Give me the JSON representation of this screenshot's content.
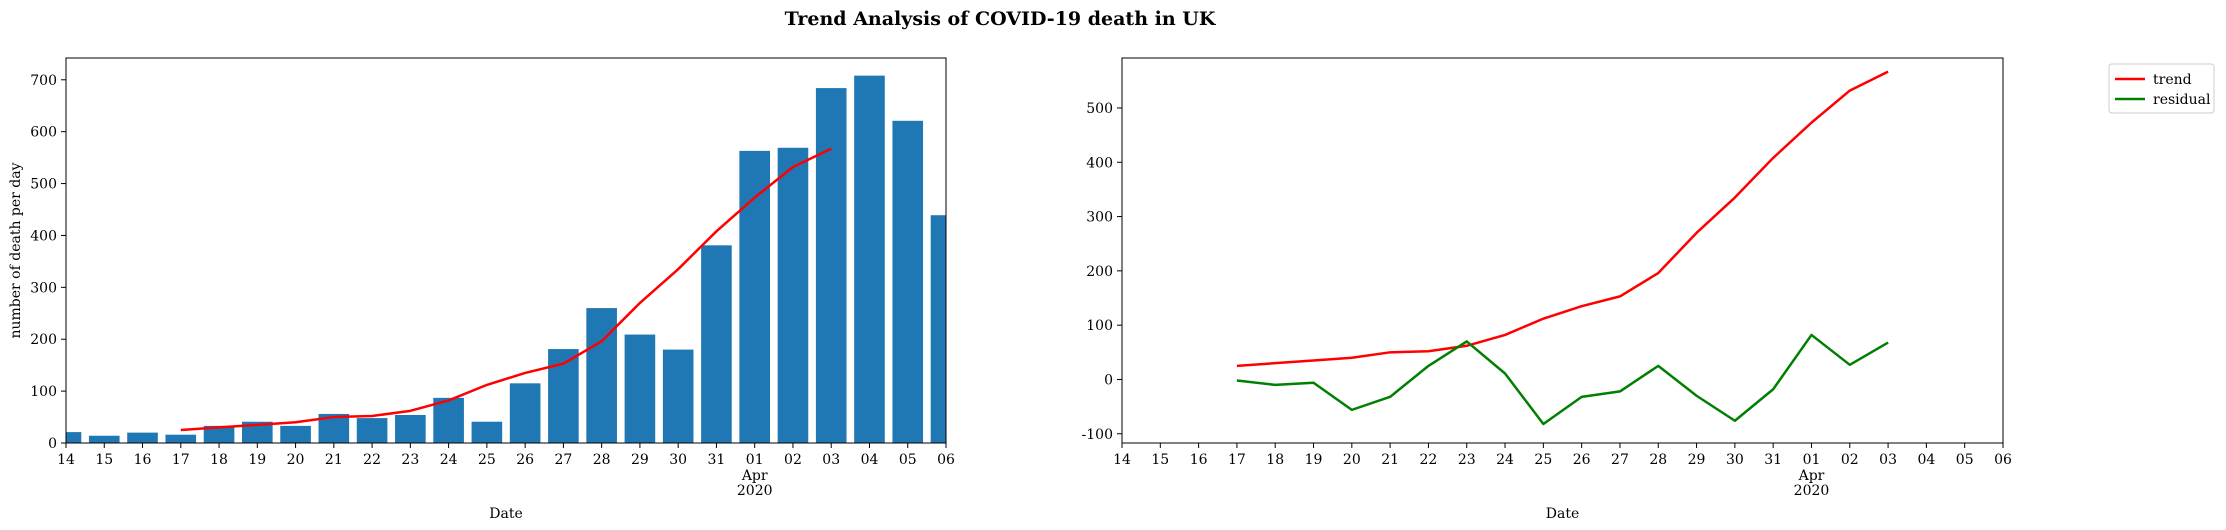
{
  "figure": {
    "suptitle": "Trend Analysis of COVID-19 death in UK"
  },
  "chart_data": [
    {
      "type": "bar",
      "xlabel": "Date",
      "ylabel": "number of death per day",
      "x_ticks": [
        "14",
        "15",
        "16",
        "17",
        "18",
        "19",
        "20",
        "21",
        "22",
        "23",
        "24",
        "25",
        "26",
        "27",
        "28",
        "29",
        "30",
        "31",
        "01",
        "02",
        "03",
        "04",
        "05",
        "06"
      ],
      "x_tick_sub": {
        "01": [
          "Apr",
          "2020"
        ]
      },
      "ylim": [
        0,
        742
      ],
      "y_ticks": [
        0,
        100,
        200,
        300,
        400,
        500,
        600,
        700
      ],
      "bar_color": "#1f77b4",
      "categories": [
        "14",
        "15",
        "16",
        "17",
        "18",
        "19",
        "20",
        "21",
        "22",
        "23",
        "24",
        "25",
        "26",
        "27",
        "28",
        "29",
        "30",
        "31",
        "01",
        "02",
        "03",
        "04",
        "05",
        "06"
      ],
      "values": [
        21,
        14,
        20,
        16,
        33,
        41,
        33,
        56,
        48,
        54,
        87,
        41,
        115,
        181,
        260,
        209,
        180,
        381,
        563,
        569,
        684,
        708,
        621,
        439
      ],
      "trend": {
        "color": "#ff0000",
        "start_index": 3,
        "values": [
          25,
          30,
          35,
          40,
          50,
          52,
          62,
          82,
          112,
          135,
          153,
          196,
          270,
          335,
          408,
          473,
          532,
          567
        ]
      }
    },
    {
      "type": "line",
      "xlabel": "Date",
      "x_ticks": [
        "14",
        "15",
        "16",
        "17",
        "18",
        "19",
        "20",
        "21",
        "22",
        "23",
        "24",
        "25",
        "26",
        "27",
        "28",
        "29",
        "30",
        "31",
        "01",
        "02",
        "03",
        "04",
        "05",
        "06"
      ],
      "x_tick_sub": {
        "01": [
          "Apr",
          "2020"
        ]
      },
      "ylim": [
        -117,
        592
      ],
      "y_ticks": [
        -100,
        0,
        100,
        200,
        300,
        400,
        500
      ],
      "start_index": 3,
      "legend": {
        "position": "outside-top-right"
      },
      "series": [
        {
          "name": "trend",
          "color": "#ff0000",
          "values": [
            25,
            30,
            35,
            40,
            50,
            52,
            62,
            82,
            112,
            135,
            153,
            196,
            270,
            335,
            408,
            473,
            532,
            567
          ]
        },
        {
          "name": "residual",
          "color": "#008000",
          "values": [
            -2,
            -10,
            -6,
            -56,
            -32,
            25,
            70,
            11,
            -82,
            -32,
            -22,
            25,
            -30,
            -76,
            -18,
            82,
            27,
            68
          ]
        }
      ]
    }
  ]
}
